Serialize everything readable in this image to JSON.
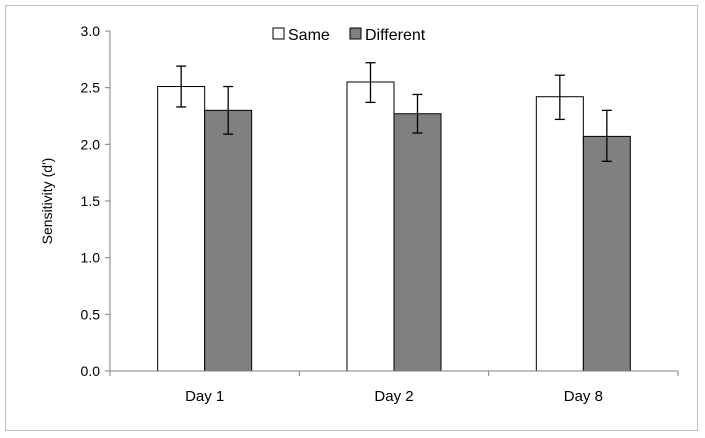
{
  "chart_data": {
    "type": "bar",
    "title": "",
    "xlabel": "",
    "ylabel": "Sensitivity (d')",
    "ylim": [
      0,
      3.0
    ],
    "yticks": [
      "0.0",
      "0.5",
      "1.0",
      "1.5",
      "2.0",
      "2.5",
      "3.0"
    ],
    "categories": [
      "Day 1",
      "Day 2",
      "Day 8"
    ],
    "series": [
      {
        "name": "Same",
        "color": "#ffffff",
        "values": [
          2.51,
          2.55,
          2.42
        ],
        "error_low": [
          2.33,
          2.37,
          2.22
        ],
        "error_high": [
          2.69,
          2.72,
          2.61
        ]
      },
      {
        "name": "Different",
        "color": "#808080",
        "values": [
          2.3,
          2.27,
          2.07
        ],
        "error_low": [
          2.09,
          2.1,
          1.85
        ],
        "error_high": [
          2.51,
          2.44,
          2.3
        ]
      }
    ],
    "grid": false,
    "legend_position": "top-center"
  }
}
